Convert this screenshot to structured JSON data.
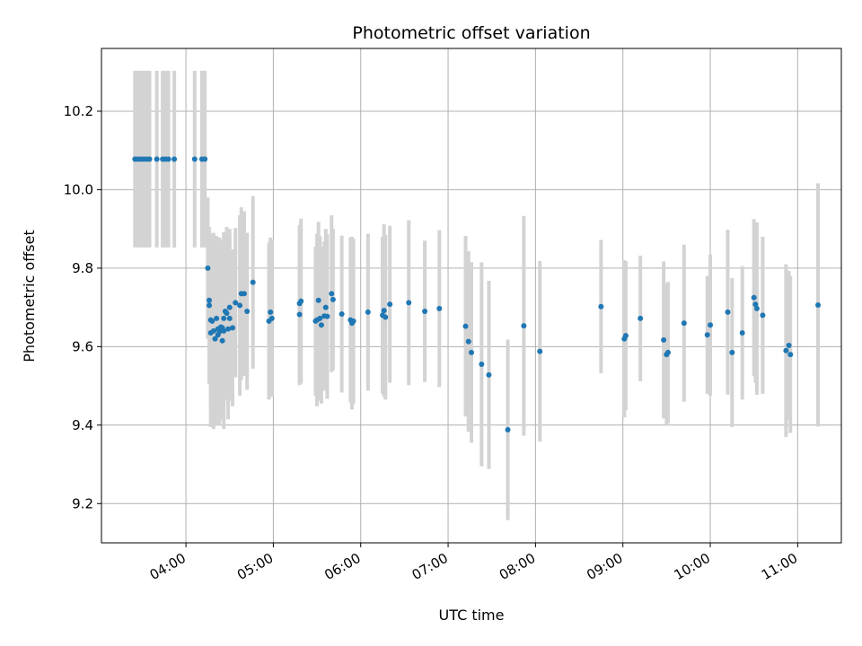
{
  "chart_data": {
    "type": "scatter",
    "title": "Photometric offset variation",
    "xlabel": "UTC time",
    "ylabel": "Photometric offset",
    "x_tick_labels": [
      "04:00",
      "05:00",
      "06:00",
      "07:00",
      "08:00",
      "09:00",
      "10:00",
      "11:00"
    ],
    "x_ticks": [
      "04:00",
      "05:00",
      "06:00",
      "07:00",
      "08:00",
      "09:00",
      "10:00",
      "11:00"
    ],
    "y_ticks": [
      9.2,
      9.4,
      9.6,
      9.8,
      10.0,
      10.2
    ],
    "y_tick_labels": [
      "9.2",
      "9.4",
      "9.6",
      "9.8",
      "10.0",
      "10.2"
    ],
    "xlim": [
      "03:02",
      "11:30"
    ],
    "ylim": [
      9.1,
      10.36
    ],
    "grid": true,
    "colors": {
      "point": "#1f77b4",
      "errorbar": "#d3d3d3",
      "grid": "#b0b0b0"
    },
    "x_label_rotation_deg": -30,
    "points": [
      {
        "t": "03:25",
        "y": 10.078,
        "err": 0.225
      },
      {
        "t": "03:27",
        "y": 10.078,
        "err": 0.225
      },
      {
        "t": "03:29",
        "y": 10.078,
        "err": 0.225
      },
      {
        "t": "03:31",
        "y": 10.078,
        "err": 0.225
      },
      {
        "t": "03:33",
        "y": 10.078,
        "err": 0.225
      },
      {
        "t": "03:35",
        "y": 10.078,
        "err": 0.225
      },
      {
        "t": "03:40",
        "y": 10.078,
        "err": 0.225
      },
      {
        "t": "03:44",
        "y": 10.078,
        "err": 0.225
      },
      {
        "t": "03:46",
        "y": 10.078,
        "err": 0.225
      },
      {
        "t": "03:48",
        "y": 10.078,
        "err": 0.225
      },
      {
        "t": "03:52",
        "y": 10.078,
        "err": 0.225
      },
      {
        "t": "04:06",
        "y": 10.078,
        "err": 0.225
      },
      {
        "t": "04:11",
        "y": 10.078,
        "err": 0.225
      },
      {
        "t": "04:13",
        "y": 10.078,
        "err": 0.225
      },
      {
        "t": "04:15",
        "y": 9.8,
        "err": 0.18
      },
      {
        "t": "04:16",
        "y": 9.718,
        "err": 0.17
      },
      {
        "t": "04:16",
        "y": 9.705,
        "err": 0.2
      },
      {
        "t": "04:17",
        "y": 9.668,
        "err": 0.22
      },
      {
        "t": "04:17",
        "y": 9.635,
        "err": 0.24
      },
      {
        "t": "04:18",
        "y": 9.665,
        "err": 0.2
      },
      {
        "t": "04:19",
        "y": 9.64,
        "err": 0.25
      },
      {
        "t": "04:20",
        "y": 9.62,
        "err": 0.22
      },
      {
        "t": "04:21",
        "y": 9.672,
        "err": 0.21
      },
      {
        "t": "04:22",
        "y": 9.645,
        "err": 0.2
      },
      {
        "t": "04:22",
        "y": 9.63,
        "err": 0.23
      },
      {
        "t": "04:23",
        "y": 9.638,
        "err": 0.24
      },
      {
        "t": "04:24",
        "y": 9.65,
        "err": 0.22
      },
      {
        "t": "04:25",
        "y": 9.615,
        "err": 0.2
      },
      {
        "t": "04:25",
        "y": 9.648,
        "err": 0.21
      },
      {
        "t": "04:26",
        "y": 9.64,
        "err": 0.25
      },
      {
        "t": "04:26",
        "y": 9.672,
        "err": 0.22
      },
      {
        "t": "04:27",
        "y": 9.69,
        "err": 0.2
      },
      {
        "t": "04:28",
        "y": 9.685,
        "err": 0.22
      },
      {
        "t": "04:29",
        "y": 9.645,
        "err": 0.23
      },
      {
        "t": "04:30",
        "y": 9.7,
        "err": 0.2
      },
      {
        "t": "04:30",
        "y": 9.672,
        "err": 0.21
      },
      {
        "t": "04:32",
        "y": 9.648,
        "err": 0.2
      },
      {
        "t": "04:34",
        "y": 9.712,
        "err": 0.19
      },
      {
        "t": "04:37",
        "y": 9.705,
        "err": 0.23
      },
      {
        "t": "04:38",
        "y": 9.735,
        "err": 0.22
      },
      {
        "t": "04:40",
        "y": 9.735,
        "err": 0.21
      },
      {
        "t": "04:42",
        "y": 9.69,
        "err": 0.2
      },
      {
        "t": "04:46",
        "y": 9.764,
        "err": 0.22
      },
      {
        "t": "04:57",
        "y": 9.665,
        "err": 0.2
      },
      {
        "t": "04:58",
        "y": 9.688,
        "err": 0.19
      },
      {
        "t": "04:59",
        "y": 9.672,
        "err": 0.2
      },
      {
        "t": "05:18",
        "y": 9.71,
        "err": 0.2
      },
      {
        "t": "05:18",
        "y": 9.682,
        "err": 0.18
      },
      {
        "t": "05:19",
        "y": 9.716,
        "err": 0.21
      },
      {
        "t": "05:29",
        "y": 9.665,
        "err": 0.19
      },
      {
        "t": "05:30",
        "y": 9.668,
        "err": 0.22
      },
      {
        "t": "05:31",
        "y": 9.718,
        "err": 0.2
      },
      {
        "t": "05:32",
        "y": 9.672,
        "err": 0.21
      },
      {
        "t": "05:33",
        "y": 9.655,
        "err": 0.2
      },
      {
        "t": "05:35",
        "y": 9.678,
        "err": 0.19
      },
      {
        "t": "05:36",
        "y": 9.7,
        "err": 0.2
      },
      {
        "t": "05:37",
        "y": 9.677,
        "err": 0.21
      },
      {
        "t": "05:40",
        "y": 9.735,
        "err": 0.2
      },
      {
        "t": "05:41",
        "y": 9.72,
        "err": 0.18
      },
      {
        "t": "05:47",
        "y": 9.683,
        "err": 0.2
      },
      {
        "t": "05:53",
        "y": 9.668,
        "err": 0.21
      },
      {
        "t": "05:54",
        "y": 9.66,
        "err": 0.22
      },
      {
        "t": "05:55",
        "y": 9.665,
        "err": 0.21
      },
      {
        "t": "06:05",
        "y": 9.688,
        "err": 0.2
      },
      {
        "t": "06:15",
        "y": 9.68,
        "err": 0.2
      },
      {
        "t": "06:16",
        "y": 9.692,
        "err": 0.22
      },
      {
        "t": "06:17",
        "y": 9.675,
        "err": 0.21
      },
      {
        "t": "06:20",
        "y": 9.708,
        "err": 0.2
      },
      {
        "t": "06:33",
        "y": 9.712,
        "err": 0.21
      },
      {
        "t": "06:44",
        "y": 9.69,
        "err": 0.18
      },
      {
        "t": "06:54",
        "y": 9.697,
        "err": 0.2
      },
      {
        "t": "07:12",
        "y": 9.652,
        "err": 0.23
      },
      {
        "t": "07:14",
        "y": 9.613,
        "err": 0.23
      },
      {
        "t": "07:16",
        "y": 9.585,
        "err": 0.23
      },
      {
        "t": "07:23",
        "y": 9.555,
        "err": 0.26
      },
      {
        "t": "07:28",
        "y": 9.528,
        "err": 0.24
      },
      {
        "t": "07:41",
        "y": 9.388,
        "err": 0.23
      },
      {
        "t": "07:52",
        "y": 9.653,
        "err": 0.28
      },
      {
        "t": "08:03",
        "y": 9.588,
        "err": 0.23
      },
      {
        "t": "08:45",
        "y": 9.702,
        "err": 0.17
      },
      {
        "t": "09:01",
        "y": 9.62,
        "err": 0.2
      },
      {
        "t": "09:02",
        "y": 9.628,
        "err": 0.19
      },
      {
        "t": "09:12",
        "y": 9.672,
        "err": 0.16
      },
      {
        "t": "09:28",
        "y": 9.617,
        "err": 0.2
      },
      {
        "t": "09:30",
        "y": 9.58,
        "err": 0.18
      },
      {
        "t": "09:31",
        "y": 9.585,
        "err": 0.18
      },
      {
        "t": "09:42",
        "y": 9.66,
        "err": 0.2
      },
      {
        "t": "09:58",
        "y": 9.63,
        "err": 0.15
      },
      {
        "t": "10:00",
        "y": 9.655,
        "err": 0.18
      },
      {
        "t": "10:12",
        "y": 9.688,
        "err": 0.21
      },
      {
        "t": "10:15",
        "y": 9.585,
        "err": 0.19
      },
      {
        "t": "10:22",
        "y": 9.635,
        "err": 0.17
      },
      {
        "t": "10:30",
        "y": 9.725,
        "err": 0.2
      },
      {
        "t": "10:31",
        "y": 9.708,
        "err": 0.2
      },
      {
        "t": "10:32",
        "y": 9.697,
        "err": 0.22
      },
      {
        "t": "10:36",
        "y": 9.68,
        "err": 0.2
      },
      {
        "t": "10:52",
        "y": 9.59,
        "err": 0.22
      },
      {
        "t": "10:54",
        "y": 9.603,
        "err": 0.19
      },
      {
        "t": "10:55",
        "y": 9.58,
        "err": 0.2
      },
      {
        "t": "11:14",
        "y": 9.706,
        "err": 0.31
      }
    ]
  }
}
